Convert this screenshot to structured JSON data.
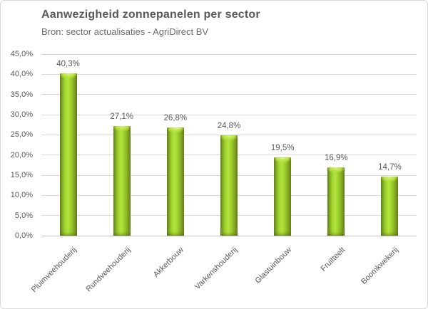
{
  "header": {
    "title": "Aanwezigheid zonnepanelen per sector",
    "subtitle": "Bron: sector actualisaties - AgriDirect BV"
  },
  "chart_data": {
    "type": "bar",
    "title": "Aanwezigheid zonnepanelen per sector",
    "source": "Bron: sector actualisaties - AgriDirect BV",
    "categories": [
      "Pluimveehouderij",
      "Rundveehouderij",
      "Akkerbouw",
      "Varkenshouderij",
      "Glastuinbouw",
      "Fruitteelt",
      "Boomkwekerij"
    ],
    "values": [
      40.3,
      27.1,
      26.8,
      24.8,
      19.5,
      16.9,
      14.7
    ],
    "value_labels": [
      "40,3%",
      "27,1%",
      "26,8%",
      "24,8%",
      "19,5%",
      "16,9%",
      "14,7%"
    ],
    "y_tick_labels": [
      "0,0%",
      "5,0%",
      "10,0%",
      "15,0%",
      "20,0%",
      "25,0%",
      "30,0%",
      "35,0%",
      "40,0%",
      "45,0%"
    ],
    "ylim": [
      0,
      45
    ],
    "y_tick_step": 5,
    "xlabel": "",
    "ylabel": "",
    "grid": true,
    "legend": "none",
    "x_label_rotation_deg": 45
  },
  "colors": {
    "bar_mid": "#9ed42c",
    "bar_bright": "#b6e340",
    "bar_edge_dark": "#66851b",
    "bar_edge_mid": "#7d9c22",
    "bar_highlight": "#d9f07f",
    "gridline": "#d9d9d9",
    "axis_line": "#bfbfbf",
    "text": "#595959",
    "frame_border": "#d6d6d6",
    "background": "#ffffff"
  }
}
